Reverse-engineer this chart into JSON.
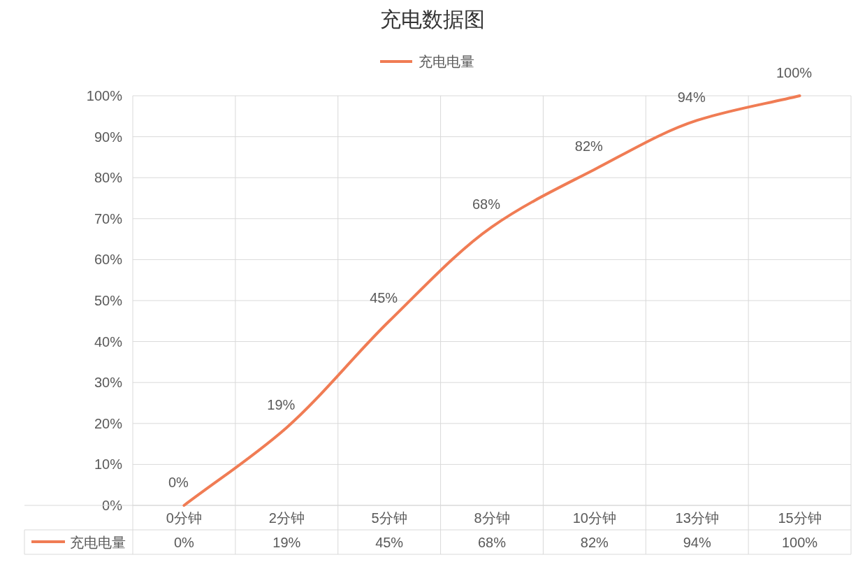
{
  "chart_data": {
    "type": "line",
    "title": "充电数据图",
    "categories": [
      "0分钟",
      "2分钟",
      "5分钟",
      "8分钟",
      "10分钟",
      "13分钟",
      "15分钟"
    ],
    "series": [
      {
        "name": "充电电量",
        "color": "#f07c54",
        "values": [
          0,
          19,
          45,
          68,
          82,
          94,
          100
        ]
      }
    ],
    "value_labels": [
      "0%",
      "19%",
      "45%",
      "68%",
      "82%",
      "94%",
      "100%"
    ],
    "ylim": [
      0,
      100
    ],
    "yticks": [
      {
        "value": 0,
        "label": "0%"
      },
      {
        "value": 10,
        "label": "10%"
      },
      {
        "value": 20,
        "label": "20%"
      },
      {
        "value": 30,
        "label": "30%"
      },
      {
        "value": 40,
        "label": "40%"
      },
      {
        "value": 50,
        "label": "50%"
      },
      {
        "value": 60,
        "label": "60%"
      },
      {
        "value": 70,
        "label": "70%"
      },
      {
        "value": 80,
        "label": "80%"
      },
      {
        "value": 90,
        "label": "90%"
      },
      {
        "value": 100,
        "label": "100%"
      }
    ],
    "grid": true,
    "legend": "top",
    "marker": "none",
    "line_style": "solid"
  }
}
